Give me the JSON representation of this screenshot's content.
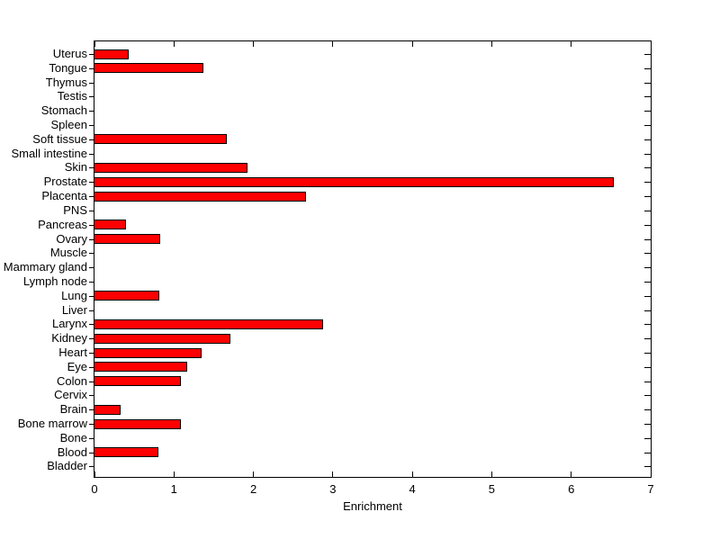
{
  "figure": {
    "background": "#ffffff",
    "text_color": "#000000"
  },
  "chart_data": {
    "type": "bar",
    "orientation": "horizontal",
    "title": "",
    "xlabel": "Enrichment",
    "ylabel": "",
    "xlim": [
      0,
      7
    ],
    "xticks": [
      "0",
      "1",
      "2",
      "3",
      "4",
      "5",
      "6",
      "7"
    ],
    "grid": false,
    "legend_position": "none",
    "bar_color": "#ff0000",
    "bar_edge_color": "#000000",
    "axis_color": "#000000",
    "categories_order": "top-to-bottom",
    "categories": [
      "Uterus",
      "Tongue",
      "Thymus",
      "Testis",
      "Stomach",
      "Spleen",
      "Soft tissue",
      "Small intestine",
      "Skin",
      "Prostate",
      "Placenta",
      "PNS",
      "Pancreas",
      "Ovary",
      "Muscle",
      "Mammary gland",
      "Lymph node",
      "Lung",
      "Liver",
      "Larynx",
      "Kidney",
      "Heart",
      "Eye",
      "Colon",
      "Cervix",
      "Brain",
      "Bone marrow",
      "Bone",
      "Blood",
      "Bladder"
    ],
    "values": [
      0.43,
      1.37,
      0,
      0,
      0,
      0,
      1.66,
      0,
      1.92,
      6.54,
      2.66,
      0,
      0.4,
      0.83,
      0,
      0,
      0,
      0.82,
      0,
      2.88,
      1.71,
      1.35,
      1.17,
      1.09,
      0,
      0.33,
      1.09,
      0,
      0.8,
      0
    ]
  }
}
